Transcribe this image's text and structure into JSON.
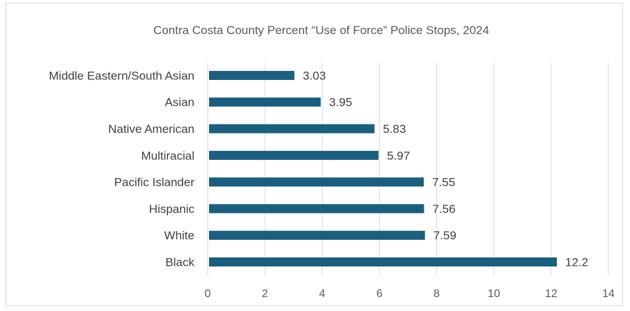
{
  "chart_data": {
    "type": "bar",
    "orientation": "horizontal",
    "title": "Contra Costa County Percent “Use of Force” Police Stops, 2024",
    "categories": [
      "Black",
      "White",
      "Hispanic",
      "Pacific Islander",
      "Multiracial",
      "Native American",
      "Asian",
      "Middle Eastern/South Asian"
    ],
    "values": [
      12.2,
      7.59,
      7.56,
      7.55,
      5.97,
      5.83,
      3.95,
      3.03
    ],
    "data_labels": [
      "12.2",
      "7.59",
      "7.56",
      "7.55",
      "5.97",
      "5.83",
      "3.95",
      "3.03"
    ],
    "xlim": [
      0,
      14
    ],
    "xticks": [
      "0",
      "2",
      "4",
      "6",
      "8",
      "10",
      "12",
      "14"
    ],
    "xlabel": "",
    "ylabel": "",
    "grid": "vertical",
    "legend": "none",
    "bar_color": "#1b5e7e",
    "grid_color": "#d9d9d9"
  }
}
